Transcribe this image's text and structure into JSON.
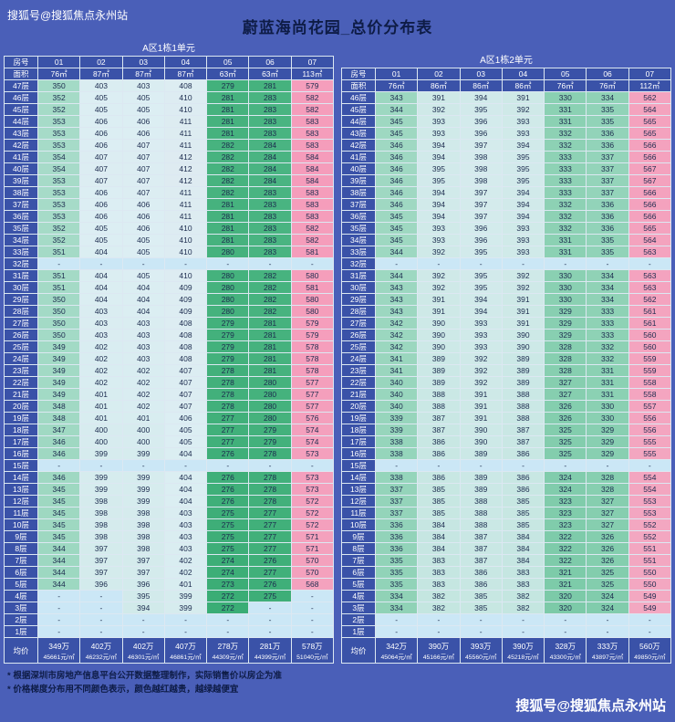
{
  "page": {
    "watermark_top": "搜狐号@搜狐焦点永州站",
    "title": "蔚蓝海尚花园_总价分布表",
    "footnotes": [
      "* 根据深圳市房地产信息平台公开数据整理制作，实际销售价以房企为准",
      "* 价格梯度分布用不同颜色表示，颜色越红越贵，越绿越便宜"
    ],
    "watermark_bottom": "搜狐号@搜狐焦点永州站"
  },
  "colors": {
    "background": "#4a5fb8",
    "header_cell": "#3a52a8",
    "grid_line": "#dce8f2",
    "dash_cell": "#cbe7f6",
    "cell_text": "#1c2b4e",
    "header_text": "#ffffff",
    "scale": [
      {
        "v": 268,
        "c": "#35aa71"
      },
      {
        "v": 298,
        "c": "#5cbd90"
      },
      {
        "v": 342,
        "c": "#9bd7bf"
      },
      {
        "v": 405,
        "c": "#dceef3"
      },
      {
        "v": 475,
        "c": "#ecd4e0"
      },
      {
        "v": 545,
        "c": "#f3a9c2"
      },
      {
        "v": 588,
        "c": "#f59bba"
      }
    ]
  },
  "chart_data": [
    {
      "type": "table",
      "title": "A区1栋1单元",
      "room_label": "房号",
      "area_label": "面积",
      "avg_label": "均价",
      "rooms": [
        "01",
        "02",
        "03",
        "04",
        "05",
        "06",
        "07"
      ],
      "areas": [
        "76㎡",
        "87㎡",
        "87㎡",
        "87㎡",
        "63㎡",
        "63㎡",
        "113㎡"
      ],
      "floors": [
        "47层",
        "46层",
        "45层",
        "44层",
        "43层",
        "42层",
        "41层",
        "40层",
        "39层",
        "38层",
        "37层",
        "36层",
        "35层",
        "34层",
        "33层",
        "32层",
        "31层",
        "30层",
        "29层",
        "28层",
        "27层",
        "26层",
        "25层",
        "24层",
        "23层",
        "22层",
        "21层",
        "20层",
        "19层",
        "18层",
        "17层",
        "16层",
        "15层",
        "14层",
        "13层",
        "12层",
        "11层",
        "10层",
        "9层",
        "8层",
        "7层",
        "6层",
        "5层",
        "4层",
        "3层",
        "2层",
        "1层"
      ],
      "values": [
        [
          "350",
          "403",
          "403",
          "408",
          "279",
          "281",
          "579"
        ],
        [
          "352",
          "405",
          "405",
          "410",
          "281",
          "283",
          "582"
        ],
        [
          "352",
          "405",
          "405",
          "410",
          "281",
          "283",
          "582"
        ],
        [
          "353",
          "406",
          "406",
          "411",
          "281",
          "283",
          "583"
        ],
        [
          "353",
          "406",
          "406",
          "411",
          "281",
          "283",
          "583"
        ],
        [
          "353",
          "406",
          "407",
          "411",
          "282",
          "284",
          "583"
        ],
        [
          "354",
          "407",
          "407",
          "412",
          "282",
          "284",
          "584"
        ],
        [
          "354",
          "407",
          "407",
          "412",
          "282",
          "284",
          "584"
        ],
        [
          "353",
          "407",
          "407",
          "412",
          "282",
          "284",
          "584"
        ],
        [
          "353",
          "406",
          "407",
          "411",
          "282",
          "283",
          "583"
        ],
        [
          "353",
          "406",
          "406",
          "411",
          "281",
          "283",
          "583"
        ],
        [
          "353",
          "406",
          "406",
          "411",
          "281",
          "283",
          "583"
        ],
        [
          "352",
          "405",
          "406",
          "410",
          "281",
          "283",
          "582"
        ],
        [
          "352",
          "405",
          "405",
          "410",
          "281",
          "283",
          "582"
        ],
        [
          "351",
          "404",
          "405",
          "410",
          "280",
          "283",
          "581"
        ],
        [
          "-",
          "-",
          "-",
          "-",
          "-",
          "-",
          "-"
        ],
        [
          "351",
          "404",
          "405",
          "410",
          "280",
          "282",
          "580"
        ],
        [
          "351",
          "404",
          "404",
          "409",
          "280",
          "282",
          "581"
        ],
        [
          "350",
          "404",
          "404",
          "409",
          "280",
          "282",
          "580"
        ],
        [
          "350",
          "403",
          "404",
          "409",
          "280",
          "282",
          "580"
        ],
        [
          "350",
          "403",
          "403",
          "408",
          "279",
          "281",
          "579"
        ],
        [
          "350",
          "403",
          "403",
          "408",
          "279",
          "281",
          "579"
        ],
        [
          "349",
          "402",
          "403",
          "408",
          "279",
          "281",
          "578"
        ],
        [
          "349",
          "402",
          "403",
          "408",
          "279",
          "281",
          "578"
        ],
        [
          "349",
          "402",
          "402",
          "407",
          "278",
          "281",
          "578"
        ],
        [
          "349",
          "402",
          "402",
          "407",
          "278",
          "280",
          "577"
        ],
        [
          "349",
          "401",
          "402",
          "407",
          "278",
          "280",
          "577"
        ],
        [
          "348",
          "401",
          "402",
          "407",
          "278",
          "280",
          "577"
        ],
        [
          "348",
          "401",
          "401",
          "406",
          "277",
          "280",
          "576"
        ],
        [
          "347",
          "400",
          "400",
          "405",
          "277",
          "279",
          "574"
        ],
        [
          "346",
          "400",
          "400",
          "405",
          "277",
          "279",
          "574"
        ],
        [
          "346",
          "399",
          "399",
          "404",
          "276",
          "278",
          "573"
        ],
        [
          "-",
          "-",
          "-",
          "-",
          "-",
          "-",
          "-"
        ],
        [
          "346",
          "399",
          "399",
          "404",
          "276",
          "278",
          "573"
        ],
        [
          "345",
          "399",
          "399",
          "404",
          "276",
          "278",
          "573"
        ],
        [
          "345",
          "398",
          "399",
          "404",
          "276",
          "278",
          "572"
        ],
        [
          "345",
          "398",
          "398",
          "403",
          "275",
          "277",
          "572"
        ],
        [
          "345",
          "398",
          "398",
          "403",
          "275",
          "277",
          "572"
        ],
        [
          "345",
          "398",
          "398",
          "403",
          "275",
          "277",
          "571"
        ],
        [
          "344",
          "397",
          "398",
          "403",
          "275",
          "277",
          "571"
        ],
        [
          "344",
          "397",
          "397",
          "402",
          "274",
          "276",
          "570"
        ],
        [
          "344",
          "397",
          "397",
          "402",
          "274",
          "277",
          "570"
        ],
        [
          "344",
          "396",
          "396",
          "401",
          "273",
          "276",
          "568"
        ],
        [
          "-",
          "-",
          "395",
          "399",
          "272",
          "275",
          "-"
        ],
        [
          "-",
          "-",
          "394",
          "399",
          "272",
          "-",
          "-"
        ],
        [
          "-",
          "-",
          "-",
          "-",
          "-",
          "-",
          "-"
        ],
        [
          "-",
          "-",
          "-",
          "-",
          "-",
          "-",
          "-"
        ]
      ],
      "avg_total": [
        "349万",
        "402万",
        "402万",
        "407万",
        "278万",
        "281万",
        "578万"
      ],
      "avg_unit": [
        "45661元/㎡",
        "46232元/㎡",
        "46301元/㎡",
        "46861元/㎡",
        "44309元/㎡",
        "44399元/㎡",
        "51040元/㎡"
      ]
    },
    {
      "type": "table",
      "title": "A区1栋2单元",
      "room_label": "房号",
      "area_label": "面积",
      "avg_label": "均价",
      "rooms": [
        "01",
        "02",
        "03",
        "04",
        "05",
        "06",
        "07"
      ],
      "areas": [
        "76㎡",
        "86㎡",
        "86㎡",
        "86㎡",
        "76㎡",
        "76㎡",
        "112㎡"
      ],
      "floors": [
        "46层",
        "45层",
        "44层",
        "43层",
        "42层",
        "41层",
        "40层",
        "39层",
        "38层",
        "37层",
        "36层",
        "35层",
        "34层",
        "33层",
        "32层",
        "31层",
        "30层",
        "29层",
        "28层",
        "27层",
        "26层",
        "25层",
        "24层",
        "23层",
        "22层",
        "21层",
        "20层",
        "19层",
        "18层",
        "17层",
        "16层",
        "15层",
        "14层",
        "13层",
        "12层",
        "11层",
        "10层",
        "9层",
        "8层",
        "7层",
        "6层",
        "5层",
        "4层",
        "3层",
        "2层",
        "1层"
      ],
      "values": [
        [
          "343",
          "391",
          "394",
          "391",
          "330",
          "334",
          "562"
        ],
        [
          "344",
          "392",
          "395",
          "392",
          "331",
          "335",
          "564"
        ],
        [
          "345",
          "393",
          "396",
          "393",
          "331",
          "335",
          "565"
        ],
        [
          "345",
          "393",
          "396",
          "393",
          "332",
          "336",
          "565"
        ],
        [
          "346",
          "394",
          "397",
          "394",
          "332",
          "336",
          "566"
        ],
        [
          "346",
          "394",
          "398",
          "395",
          "333",
          "337",
          "566"
        ],
        [
          "346",
          "395",
          "398",
          "395",
          "333",
          "337",
          "567"
        ],
        [
          "346",
          "395",
          "398",
          "395",
          "333",
          "337",
          "567"
        ],
        [
          "346",
          "394",
          "397",
          "394",
          "333",
          "337",
          "566"
        ],
        [
          "346",
          "394",
          "397",
          "394",
          "332",
          "336",
          "566"
        ],
        [
          "345",
          "394",
          "397",
          "394",
          "332",
          "336",
          "566"
        ],
        [
          "345",
          "393",
          "396",
          "393",
          "332",
          "336",
          "565"
        ],
        [
          "345",
          "393",
          "396",
          "393",
          "331",
          "335",
          "564"
        ],
        [
          "344",
          "392",
          "395",
          "393",
          "331",
          "335",
          "563"
        ],
        [
          "-",
          "-",
          "-",
          "-",
          "-",
          "-",
          "-"
        ],
        [
          "344",
          "392",
          "395",
          "392",
          "330",
          "334",
          "563"
        ],
        [
          "343",
          "392",
          "395",
          "392",
          "330",
          "334",
          "563"
        ],
        [
          "343",
          "391",
          "394",
          "391",
          "330",
          "334",
          "562"
        ],
        [
          "343",
          "391",
          "394",
          "391",
          "329",
          "333",
          "561"
        ],
        [
          "342",
          "390",
          "393",
          "391",
          "329",
          "333",
          "561"
        ],
        [
          "342",
          "390",
          "393",
          "390",
          "329",
          "333",
          "560"
        ],
        [
          "342",
          "390",
          "393",
          "390",
          "328",
          "332",
          "560"
        ],
        [
          "341",
          "389",
          "392",
          "389",
          "328",
          "332",
          "559"
        ],
        [
          "341",
          "389",
          "392",
          "389",
          "328",
          "331",
          "559"
        ],
        [
          "340",
          "389",
          "392",
          "389",
          "327",
          "331",
          "558"
        ],
        [
          "340",
          "388",
          "391",
          "388",
          "327",
          "331",
          "558"
        ],
        [
          "340",
          "388",
          "391",
          "388",
          "326",
          "330",
          "557"
        ],
        [
          "339",
          "387",
          "391",
          "388",
          "326",
          "330",
          "556"
        ],
        [
          "339",
          "387",
          "390",
          "387",
          "325",
          "329",
          "556"
        ],
        [
          "338",
          "386",
          "390",
          "387",
          "325",
          "329",
          "555"
        ],
        [
          "338",
          "386",
          "389",
          "386",
          "325",
          "329",
          "555"
        ],
        [
          "-",
          "-",
          "-",
          "-",
          "-",
          "-",
          "-"
        ],
        [
          "338",
          "386",
          "389",
          "386",
          "324",
          "328",
          "554"
        ],
        [
          "337",
          "385",
          "389",
          "386",
          "324",
          "328",
          "554"
        ],
        [
          "337",
          "385",
          "388",
          "385",
          "323",
          "327",
          "553"
        ],
        [
          "337",
          "385",
          "388",
          "385",
          "323",
          "327",
          "553"
        ],
        [
          "336",
          "384",
          "388",
          "385",
          "323",
          "327",
          "552"
        ],
        [
          "336",
          "384",
          "387",
          "384",
          "322",
          "326",
          "552"
        ],
        [
          "336",
          "384",
          "387",
          "384",
          "322",
          "326",
          "551"
        ],
        [
          "335",
          "383",
          "387",
          "384",
          "322",
          "326",
          "551"
        ],
        [
          "335",
          "383",
          "386",
          "383",
          "321",
          "325",
          "550"
        ],
        [
          "335",
          "383",
          "386",
          "383",
          "321",
          "325",
          "550"
        ],
        [
          "334",
          "382",
          "385",
          "382",
          "320",
          "324",
          "549"
        ],
        [
          "334",
          "382",
          "385",
          "382",
          "320",
          "324",
          "549"
        ],
        [
          "-",
          "-",
          "-",
          "-",
          "-",
          "-",
          "-"
        ],
        [
          "-",
          "-",
          "-",
          "-",
          "-",
          "-",
          "-"
        ]
      ],
      "avg_total": [
        "342万",
        "390万",
        "393万",
        "390万",
        "328万",
        "333万",
        "560万"
      ],
      "avg_unit": [
        "45064元/㎡",
        "45166元/㎡",
        "45560元/㎡",
        "45218元/㎡",
        "43300元/㎡",
        "43897元/㎡",
        "49850元/㎡"
      ]
    }
  ]
}
